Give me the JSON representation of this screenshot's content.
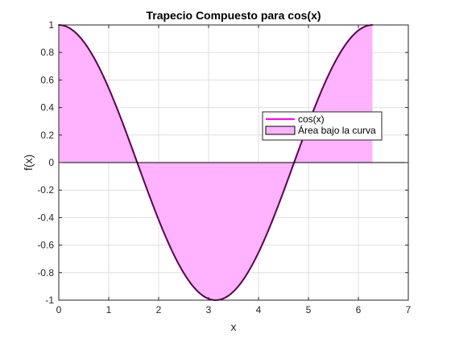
{
  "chart_data": {
    "type": "area",
    "title": "Trapecio Compuesto para cos(x)",
    "xlabel": "x",
    "ylabel": "f(x)",
    "xlim": [
      0,
      7
    ],
    "ylim": [
      -1,
      1
    ],
    "x_ticks": [
      "0",
      "1",
      "2",
      "3",
      "4",
      "5",
      "6",
      "7"
    ],
    "y_ticks": [
      "-1",
      "-0.8",
      "-0.6",
      "-0.4",
      "-0.2",
      "0",
      "0.2",
      "0.4",
      "0.6",
      "0.8",
      "1"
    ],
    "grid": true,
    "legend_placement": "right",
    "series": [
      {
        "name": "cos(x)",
        "kind": "line",
        "color": "#ff00ff",
        "x": [
          0,
          0.3,
          0.6,
          0.9,
          1.2,
          1.5,
          1.8,
          2.1,
          2.4,
          2.7,
          3.0,
          3.3,
          3.6,
          3.9,
          4.2,
          4.5,
          4.8,
          5.1,
          5.4,
          5.7,
          6.0,
          6.283
        ],
        "y": [
          1.0,
          0.955,
          0.825,
          0.622,
          0.362,
          0.071,
          -0.227,
          -0.505,
          -0.737,
          -0.904,
          -0.99,
          -0.987,
          -0.897,
          -0.726,
          -0.49,
          -0.211,
          0.087,
          0.378,
          0.635,
          0.835,
          0.96,
          1.0
        ]
      },
      {
        "name": "Área bajo la curva",
        "kind": "area",
        "color": "#ffb3ff",
        "x": [
          0,
          0.3,
          0.6,
          0.9,
          1.2,
          1.5,
          1.8,
          2.1,
          2.4,
          2.7,
          3.0,
          3.3,
          3.6,
          3.9,
          4.2,
          4.5,
          4.8,
          5.1,
          5.4,
          5.7,
          6.0,
          6.283
        ],
        "y": [
          1.0,
          0.955,
          0.825,
          0.622,
          0.362,
          0.071,
          -0.227,
          -0.505,
          -0.737,
          -0.904,
          -0.99,
          -0.987,
          -0.897,
          -0.726,
          -0.49,
          -0.211,
          0.087,
          0.378,
          0.635,
          0.835,
          0.96,
          1.0
        ]
      }
    ],
    "zero_line": {
      "y": 0,
      "color": "#000000"
    },
    "edge_color": "#5a0050"
  }
}
